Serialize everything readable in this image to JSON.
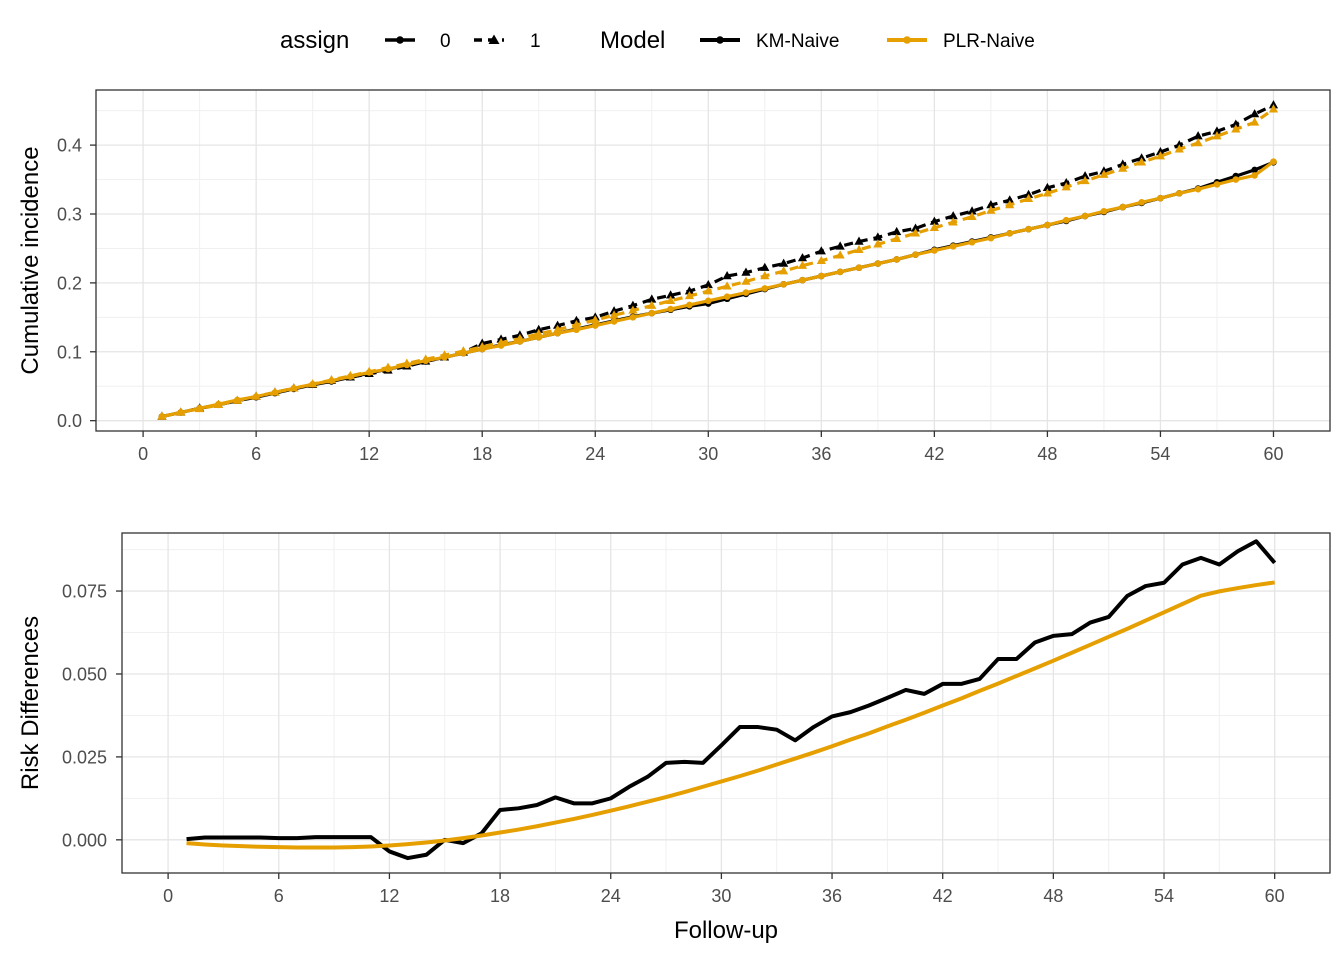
{
  "legend": {
    "assign_title": "assign",
    "assign_levels": [
      "0",
      "1"
    ],
    "model_title": "Model",
    "models": [
      {
        "name": "KM-Naive",
        "color": "#000000"
      },
      {
        "name": "PLR-Naive",
        "color": "#E69F00"
      }
    ]
  },
  "chart_data": [
    {
      "type": "line",
      "ylabel": "Cumulative incidence",
      "xlabel": "",
      "xlim": [
        -2.5,
        63
      ],
      "ylim": [
        -0.015,
        0.48
      ],
      "xticks": [
        0,
        6,
        12,
        18,
        24,
        30,
        36,
        42,
        48,
        54,
        60
      ],
      "xtick_labels": [
        "0",
        "6",
        "12",
        "18",
        "24",
        "30",
        "36",
        "42",
        "48",
        "54",
        "60"
      ],
      "yticks": [
        0.0,
        0.1,
        0.2,
        0.3,
        0.4
      ],
      "ytick_labels": [
        "0.0",
        "0.1",
        "0.2",
        "0.3",
        "0.4"
      ],
      "grid": true,
      "x": [
        1,
        2,
        3,
        4,
        5,
        6,
        7,
        8,
        9,
        10,
        11,
        12,
        13,
        14,
        15,
        16,
        17,
        18,
        19,
        20,
        21,
        22,
        23,
        24,
        25,
        26,
        27,
        28,
        29,
        30,
        31,
        32,
        33,
        34,
        35,
        36,
        37,
        38,
        39,
        40,
        41,
        42,
        43,
        44,
        45,
        46,
        47,
        48,
        49,
        50,
        51,
        52,
        53,
        54,
        55,
        56,
        57,
        58,
        59,
        60
      ],
      "series": [
        {
          "model": "KM-Naive",
          "assign": "0",
          "color": "#000000",
          "marker": "circle",
          "dash": "solid",
          "values": [
            0.006,
            0.012,
            0.018,
            0.023,
            0.029,
            0.034,
            0.04,
            0.046,
            0.052,
            0.057,
            0.063,
            0.069,
            0.075,
            0.08,
            0.086,
            0.092,
            0.098,
            0.104,
            0.11,
            0.115,
            0.121,
            0.127,
            0.133,
            0.139,
            0.145,
            0.151,
            0.156,
            0.161,
            0.166,
            0.17,
            0.177,
            0.184,
            0.191,
            0.198,
            0.204,
            0.21,
            0.216,
            0.222,
            0.228,
            0.234,
            0.241,
            0.248,
            0.254,
            0.26,
            0.266,
            0.272,
            0.278,
            0.284,
            0.29,
            0.297,
            0.303,
            0.31,
            0.316,
            0.323,
            0.33,
            0.337,
            0.346,
            0.355,
            0.364,
            0.375
          ]
        },
        {
          "model": "KM-Naive",
          "assign": "1",
          "color": "#000000",
          "marker": "triangle",
          "dash": "dashed",
          "values": [
            0.006,
            0.012,
            0.018,
            0.023,
            0.029,
            0.035,
            0.041,
            0.047,
            0.052,
            0.058,
            0.063,
            0.068,
            0.073,
            0.079,
            0.086,
            0.092,
            0.099,
            0.112,
            0.118,
            0.124,
            0.132,
            0.138,
            0.145,
            0.15,
            0.159,
            0.167,
            0.176,
            0.182,
            0.188,
            0.197,
            0.21,
            0.215,
            0.222,
            0.228,
            0.236,
            0.246,
            0.253,
            0.26,
            0.266,
            0.274,
            0.279,
            0.289,
            0.297,
            0.304,
            0.313,
            0.32,
            0.328,
            0.338,
            0.345,
            0.355,
            0.362,
            0.372,
            0.381,
            0.39,
            0.4,
            0.413,
            0.42,
            0.43,
            0.445,
            0.458
          ]
        },
        {
          "model": "PLR-Naive",
          "assign": "0",
          "color": "#E69F00",
          "marker": "circle",
          "dash": "solid",
          "values": [
            0.006,
            0.012,
            0.018,
            0.024,
            0.03,
            0.035,
            0.041,
            0.047,
            0.053,
            0.058,
            0.064,
            0.07,
            0.075,
            0.081,
            0.087,
            0.092,
            0.098,
            0.104,
            0.109,
            0.115,
            0.121,
            0.127,
            0.132,
            0.138,
            0.144,
            0.15,
            0.156,
            0.162,
            0.168,
            0.174,
            0.18,
            0.186,
            0.192,
            0.198,
            0.204,
            0.21,
            0.216,
            0.222,
            0.228,
            0.234,
            0.241,
            0.247,
            0.253,
            0.259,
            0.265,
            0.272,
            0.278,
            0.284,
            0.291,
            0.297,
            0.304,
            0.31,
            0.317,
            0.323,
            0.33,
            0.336,
            0.343,
            0.35,
            0.356,
            0.376
          ]
        },
        {
          "model": "PLR-Naive",
          "assign": "1",
          "color": "#E69F00",
          "marker": "triangle",
          "dash": "dashed",
          "values": [
            0.006,
            0.012,
            0.017,
            0.023,
            0.029,
            0.035,
            0.041,
            0.047,
            0.053,
            0.059,
            0.065,
            0.071,
            0.077,
            0.083,
            0.089,
            0.095,
            0.101,
            0.107,
            0.113,
            0.119,
            0.126,
            0.132,
            0.139,
            0.146,
            0.153,
            0.16,
            0.167,
            0.174,
            0.181,
            0.188,
            0.195,
            0.202,
            0.21,
            0.217,
            0.225,
            0.232,
            0.24,
            0.248,
            0.256,
            0.264,
            0.272,
            0.28,
            0.288,
            0.296,
            0.305,
            0.313,
            0.322,
            0.33,
            0.339,
            0.348,
            0.357,
            0.366,
            0.375,
            0.384,
            0.394,
            0.403,
            0.413,
            0.423,
            0.433,
            0.452
          ]
        }
      ]
    },
    {
      "type": "line",
      "ylabel": "Risk Differences",
      "xlabel": "Follow-up",
      "xlim": [
        -2.5,
        63
      ],
      "ylim": [
        -0.01,
        0.0925
      ],
      "xticks": [
        0,
        6,
        12,
        18,
        24,
        30,
        36,
        42,
        48,
        54,
        60
      ],
      "xtick_labels": [
        "0",
        "6",
        "12",
        "18",
        "24",
        "30",
        "36",
        "42",
        "48",
        "54",
        "60"
      ],
      "yticks": [
        0.0,
        0.025,
        0.05,
        0.075
      ],
      "ytick_labels": [
        "0.000",
        "0.025",
        "0.050",
        "0.075"
      ],
      "grid": true,
      "x": [
        1,
        2,
        3,
        4,
        5,
        6,
        7,
        8,
        9,
        10,
        11,
        12,
        13,
        14,
        15,
        16,
        17,
        18,
        19,
        20,
        21,
        22,
        23,
        24,
        25,
        26,
        27,
        28,
        29,
        30,
        31,
        32,
        33,
        34,
        35,
        36,
        37,
        38,
        39,
        40,
        41,
        42,
        43,
        44,
        45,
        46,
        47,
        48,
        49,
        50,
        51,
        52,
        53,
        54,
        55,
        56,
        57,
        58,
        59,
        60
      ],
      "series": [
        {
          "model": "KM-Naive",
          "color": "#000000",
          "values": [
            0.0002,
            0.0007,
            0.0007,
            0.0007,
            0.0007,
            0.0005,
            0.0005,
            0.0008,
            0.0008,
            0.0008,
            0.0008,
            -0.0035,
            -0.0055,
            -0.0045,
            0.0,
            -0.001,
            0.002,
            0.009,
            0.0095,
            0.0105,
            0.0128,
            0.011,
            0.011,
            0.0125,
            0.016,
            0.019,
            0.0232,
            0.0235,
            0.0232,
            0.0285,
            0.034,
            0.034,
            0.0332,
            0.03,
            0.034,
            0.0372,
            0.0385,
            0.0405,
            0.0428,
            0.0452,
            0.044,
            0.047,
            0.047,
            0.0485,
            0.0545,
            0.0545,
            0.0595,
            0.0615,
            0.062,
            0.0655,
            0.0672,
            0.0735,
            0.0765,
            0.0775,
            0.083,
            0.085,
            0.083,
            0.087,
            0.09,
            0.0835
          ]
        },
        {
          "model": "PLR-Naive",
          "color": "#E69F00",
          "values": [
            -0.001,
            -0.0014,
            -0.0017,
            -0.0019,
            -0.0021,
            -0.0022,
            -0.0023,
            -0.0023,
            -0.0023,
            -0.0022,
            -0.002,
            -0.0017,
            -0.0013,
            -0.0008,
            -0.0002,
            0.0005,
            0.0013,
            0.0022,
            0.0031,
            0.0041,
            0.0052,
            0.0063,
            0.0075,
            0.0088,
            0.0101,
            0.0115,
            0.0129,
            0.0144,
            0.016,
            0.0176,
            0.0192,
            0.0209,
            0.0227,
            0.0245,
            0.0263,
            0.0282,
            0.0302,
            0.0321,
            0.0342,
            0.0362,
            0.0383,
            0.0405,
            0.0426,
            0.0449,
            0.0471,
            0.0494,
            0.0517,
            0.054,
            0.0564,
            0.0588,
            0.0612,
            0.0636,
            0.0661,
            0.0686,
            0.0711,
            0.0736,
            0.0749,
            0.0759,
            0.0768,
            0.0776
          ]
        }
      ]
    }
  ]
}
